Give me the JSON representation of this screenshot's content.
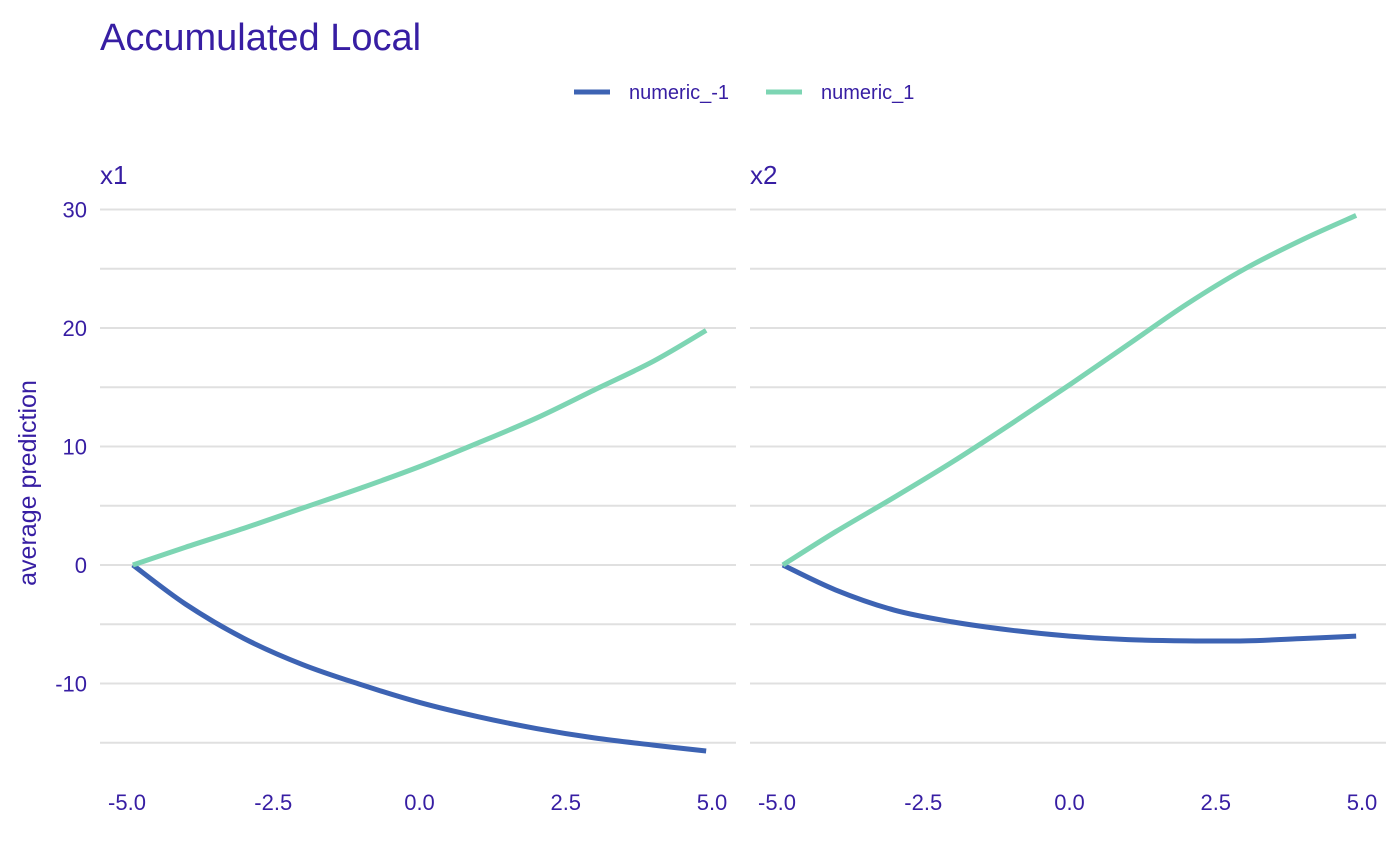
{
  "chart_data": {
    "type": "line",
    "title": "Accumulated Local",
    "ylabel": "average prediction",
    "xlabel": "",
    "legend_position": "top",
    "grid": true,
    "series_meta": [
      {
        "name": "numeric_-1",
        "color": "#3d63b3"
      },
      {
        "name": "numeric_1",
        "color": "#7dd5b3"
      }
    ],
    "ylim": [
      -15.5,
      30
    ],
    "y_ticks": [
      30,
      20,
      10,
      0,
      -10
    ],
    "y_tick_labels": [
      "30",
      "20",
      "10",
      "0",
      "-10"
    ],
    "xlim": [
      -5,
      5
    ],
    "x_ticks": [
      -5,
      -2.5,
      0,
      2.5,
      5
    ],
    "x_tick_labels": [
      "-5.0",
      "-2.5",
      "0.0",
      "2.5",
      "5.0"
    ],
    "panels": [
      {
        "label": "x1",
        "x": [
          -4.9,
          -4.0,
          -3.0,
          -2.0,
          -1.0,
          0.0,
          1.0,
          2.0,
          3.0,
          4.0,
          4.9
        ],
        "series": [
          {
            "name": "numeric_-1",
            "values": [
              0,
              -3.3,
              -6.2,
              -8.4,
              -10.1,
              -11.6,
              -12.8,
              -13.8,
              -14.6,
              -15.2,
              -15.7
            ]
          },
          {
            "name": "numeric_1",
            "values": [
              0,
              1.5,
              3.1,
              4.8,
              6.5,
              8.3,
              10.3,
              12.4,
              14.8,
              17.2,
              19.8
            ]
          }
        ]
      },
      {
        "label": "x2",
        "x": [
          -4.9,
          -4.0,
          -3.0,
          -2.0,
          -1.0,
          0.0,
          1.0,
          2.0,
          3.0,
          4.0,
          4.9
        ],
        "series": [
          {
            "name": "numeric_-1",
            "values": [
              0,
              -2.1,
              -3.8,
              -4.8,
              -5.5,
              -6.0,
              -6.3,
              -6.4,
              -6.4,
              -6.2,
              -6.0
            ]
          },
          {
            "name": "numeric_1",
            "values": [
              0,
              2.8,
              5.7,
              8.7,
              11.9,
              15.2,
              18.6,
              22.0,
              25.0,
              27.5,
              29.5
            ]
          }
        ]
      }
    ]
  }
}
